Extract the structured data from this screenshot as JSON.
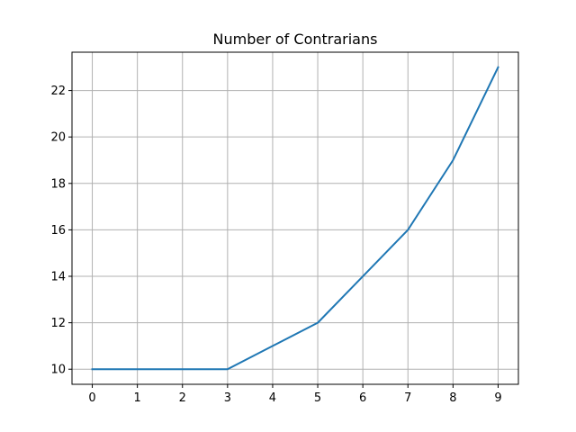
{
  "chart_data": {
    "type": "line",
    "title": "Number of Contrarians",
    "xlabel": "",
    "ylabel": "",
    "x": [
      0,
      1,
      2,
      3,
      4,
      5,
      6,
      7,
      8,
      9
    ],
    "series": [
      {
        "values": [
          10,
          10,
          10,
          10,
          11,
          12,
          14,
          16,
          19,
          23
        ],
        "color": "#1f77b4"
      }
    ],
    "xticks": [
      "0",
      "1",
      "2",
      "3",
      "4",
      "5",
      "6",
      "7",
      "8",
      "9"
    ],
    "yticks": [
      "10",
      "12",
      "14",
      "16",
      "18",
      "20",
      "22"
    ],
    "xlim": [
      -0.45,
      9.45
    ],
    "ylim": [
      9.35,
      23.65
    ],
    "grid": true,
    "grid_color": "#b0b0b0"
  }
}
